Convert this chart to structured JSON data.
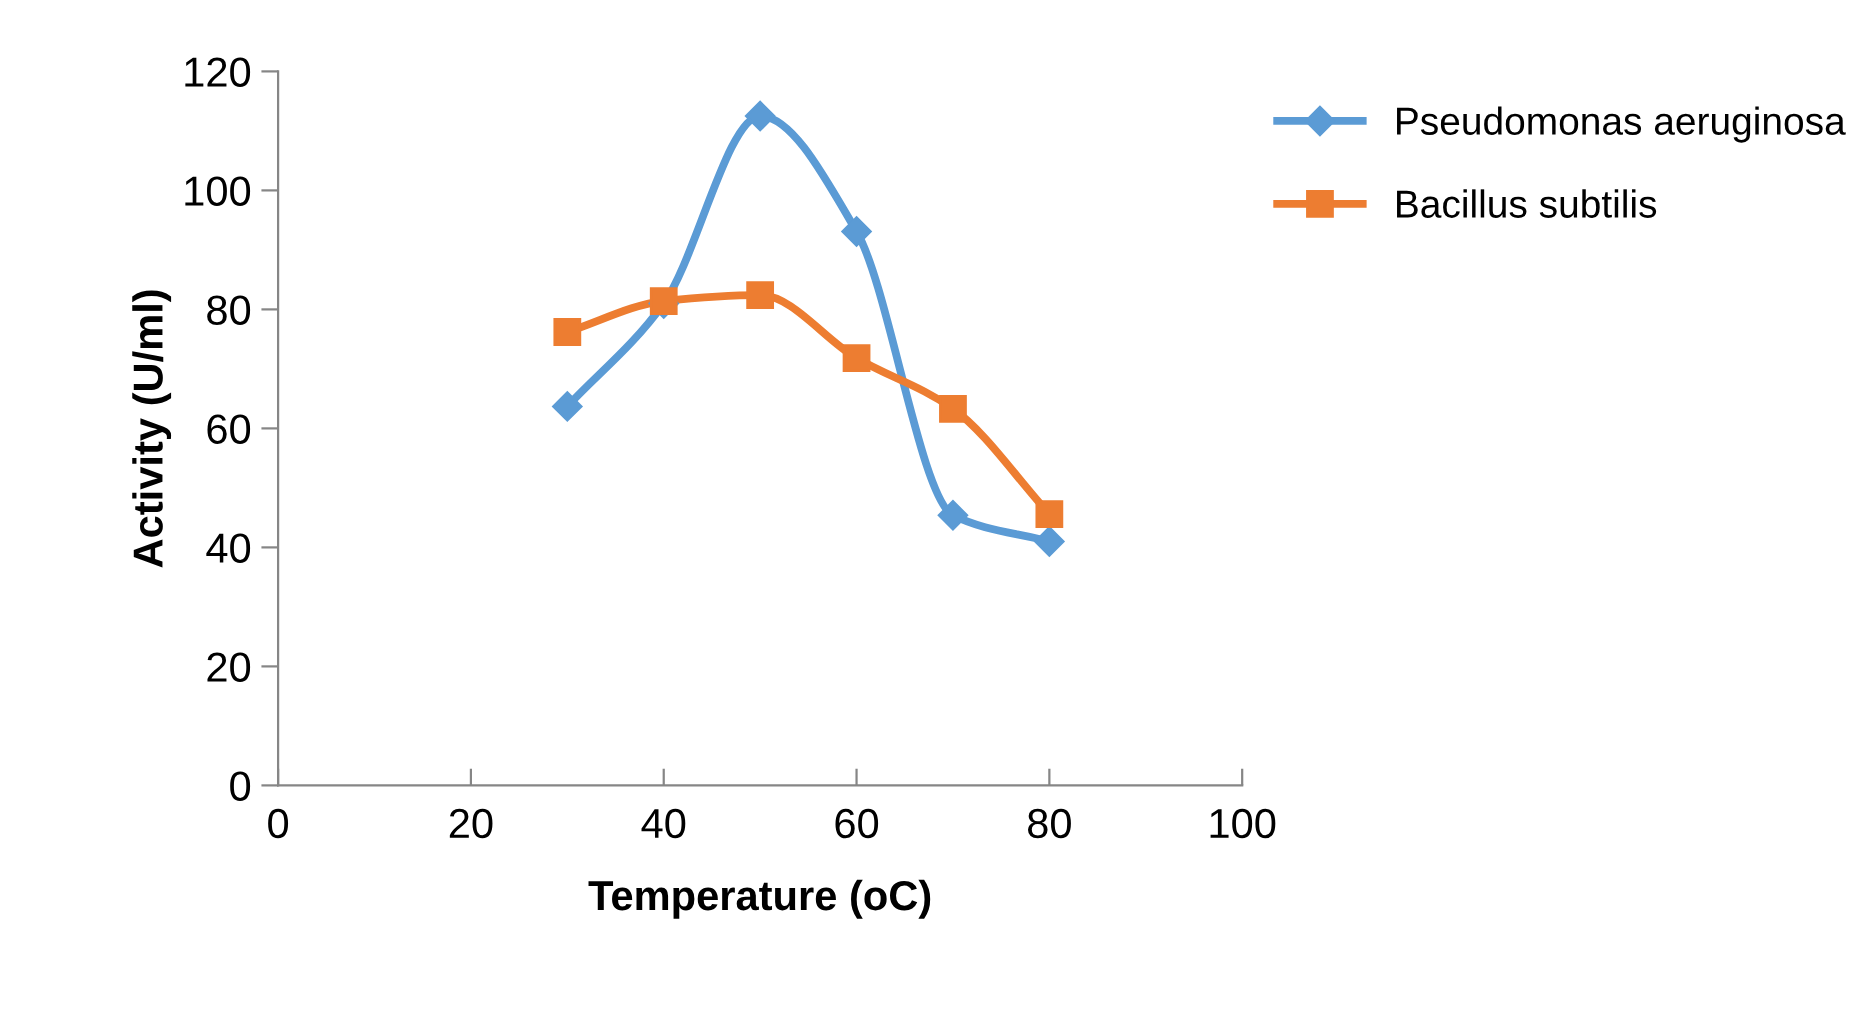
{
  "chart_data": {
    "type": "line",
    "xlabel": "Temperature (oC)",
    "ylabel": "Activity (U/ml)",
    "x": [
      30,
      40,
      50,
      60,
      70,
      80
    ],
    "series": [
      {
        "name": "Pseudomonas aeruginosa",
        "color": "#5b9bd5",
        "marker": "diamond",
        "values": [
          63.7,
          81,
          112.5,
          93.1,
          45.4,
          41
        ]
      },
      {
        "name": "Bacillus subtilis",
        "color": "#ed7d31",
        "marker": "square",
        "values": [
          76.2,
          81.4,
          82.4,
          71.8,
          63.3,
          45.6
        ]
      }
    ],
    "xlim": [
      0,
      100
    ],
    "xticks": [
      0,
      20,
      40,
      60,
      80,
      100
    ],
    "ylim": [
      0,
      120
    ],
    "yticks": [
      0,
      20,
      40,
      60,
      80,
      100,
      120
    ],
    "grid": false,
    "legend": "right",
    "line_style": "solid"
  }
}
